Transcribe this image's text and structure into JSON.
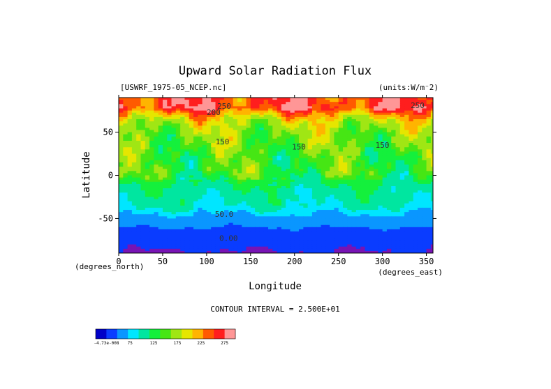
{
  "chart_data": {
    "type": "heatmap",
    "title": "Upward Solar Radiation Flux",
    "dataset_label": "[USWRF_1975-05_NCEP.nc]",
    "units_label": "(units:W/m⁻2)",
    "xlabel": "Longitude",
    "ylabel": "Latitude",
    "x_unit_label": "(degrees_east)",
    "y_unit_label": "(degrees_north)",
    "xlim": [
      0,
      357.5
    ],
    "ylim": [
      -90,
      90
    ],
    "x_ticks": [
      0,
      50,
      100,
      150,
      200,
      250,
      300,
      350
    ],
    "y_ticks": [
      -50,
      0,
      50
    ],
    "contour_interval_text": "CONTOUR INTERVAL = 2.500E+01",
    "contour_labels": [
      {
        "text": "250",
        "lon": 120,
        "lat": 77
      },
      {
        "text": "200",
        "lon": 108,
        "lat": 70
      },
      {
        "text": "250",
        "lon": 340,
        "lat": 78
      },
      {
        "text": "150",
        "lon": 118,
        "lat": 36
      },
      {
        "text": "150",
        "lon": 205,
        "lat": 30
      },
      {
        "text": "150",
        "lon": 300,
        "lat": 32
      },
      {
        "text": "50.0",
        "lon": 120,
        "lat": -48
      },
      {
        "text": "0.00",
        "lon": 125,
        "lat": -76
      }
    ],
    "levels": [
      0,
      25,
      50,
      75,
      100,
      125,
      150,
      175,
      200,
      225,
      250,
      275
    ],
    "colorbar_labels": [
      "-4.73e-008",
      "75",
      "125",
      "175",
      "225",
      "275"
    ],
    "colors": [
      "#0000c8",
      "#0a3cff",
      "#0a96ff",
      "#00e6ff",
      "#00e6a0",
      "#14f03c",
      "#46e614",
      "#a0e614",
      "#e6e600",
      "#ffb400",
      "#ff5a00",
      "#ff1e1e",
      "#ff9696"
    ],
    "south_pole_band_color": "#7814b4",
    "zonal_profile": [
      {
        "lat": 86,
        "value": 255
      },
      {
        "lat": 78,
        "value": 262
      },
      {
        "lat": 70,
        "value": 210
      },
      {
        "lat": 62,
        "value": 175
      },
      {
        "lat": 54,
        "value": 160
      },
      {
        "lat": 46,
        "value": 150
      },
      {
        "lat": 38,
        "value": 145
      },
      {
        "lat": 30,
        "value": 140
      },
      {
        "lat": 22,
        "value": 130
      },
      {
        "lat": 14,
        "value": 128
      },
      {
        "lat": 6,
        "value": 132
      },
      {
        "lat": -2,
        "value": 120
      },
      {
        "lat": -10,
        "value": 100
      },
      {
        "lat": -18,
        "value": 90
      },
      {
        "lat": -26,
        "value": 85
      },
      {
        "lat": -34,
        "value": 80
      },
      {
        "lat": -42,
        "value": 60
      },
      {
        "lat": -50,
        "value": 40
      },
      {
        "lat": -58,
        "value": 30
      },
      {
        "lat": -66,
        "value": 15
      },
      {
        "lat": -74,
        "value": 10
      },
      {
        "lat": -82,
        "value": 5
      },
      {
        "lat": -89,
        "value": -1
      }
    ]
  }
}
